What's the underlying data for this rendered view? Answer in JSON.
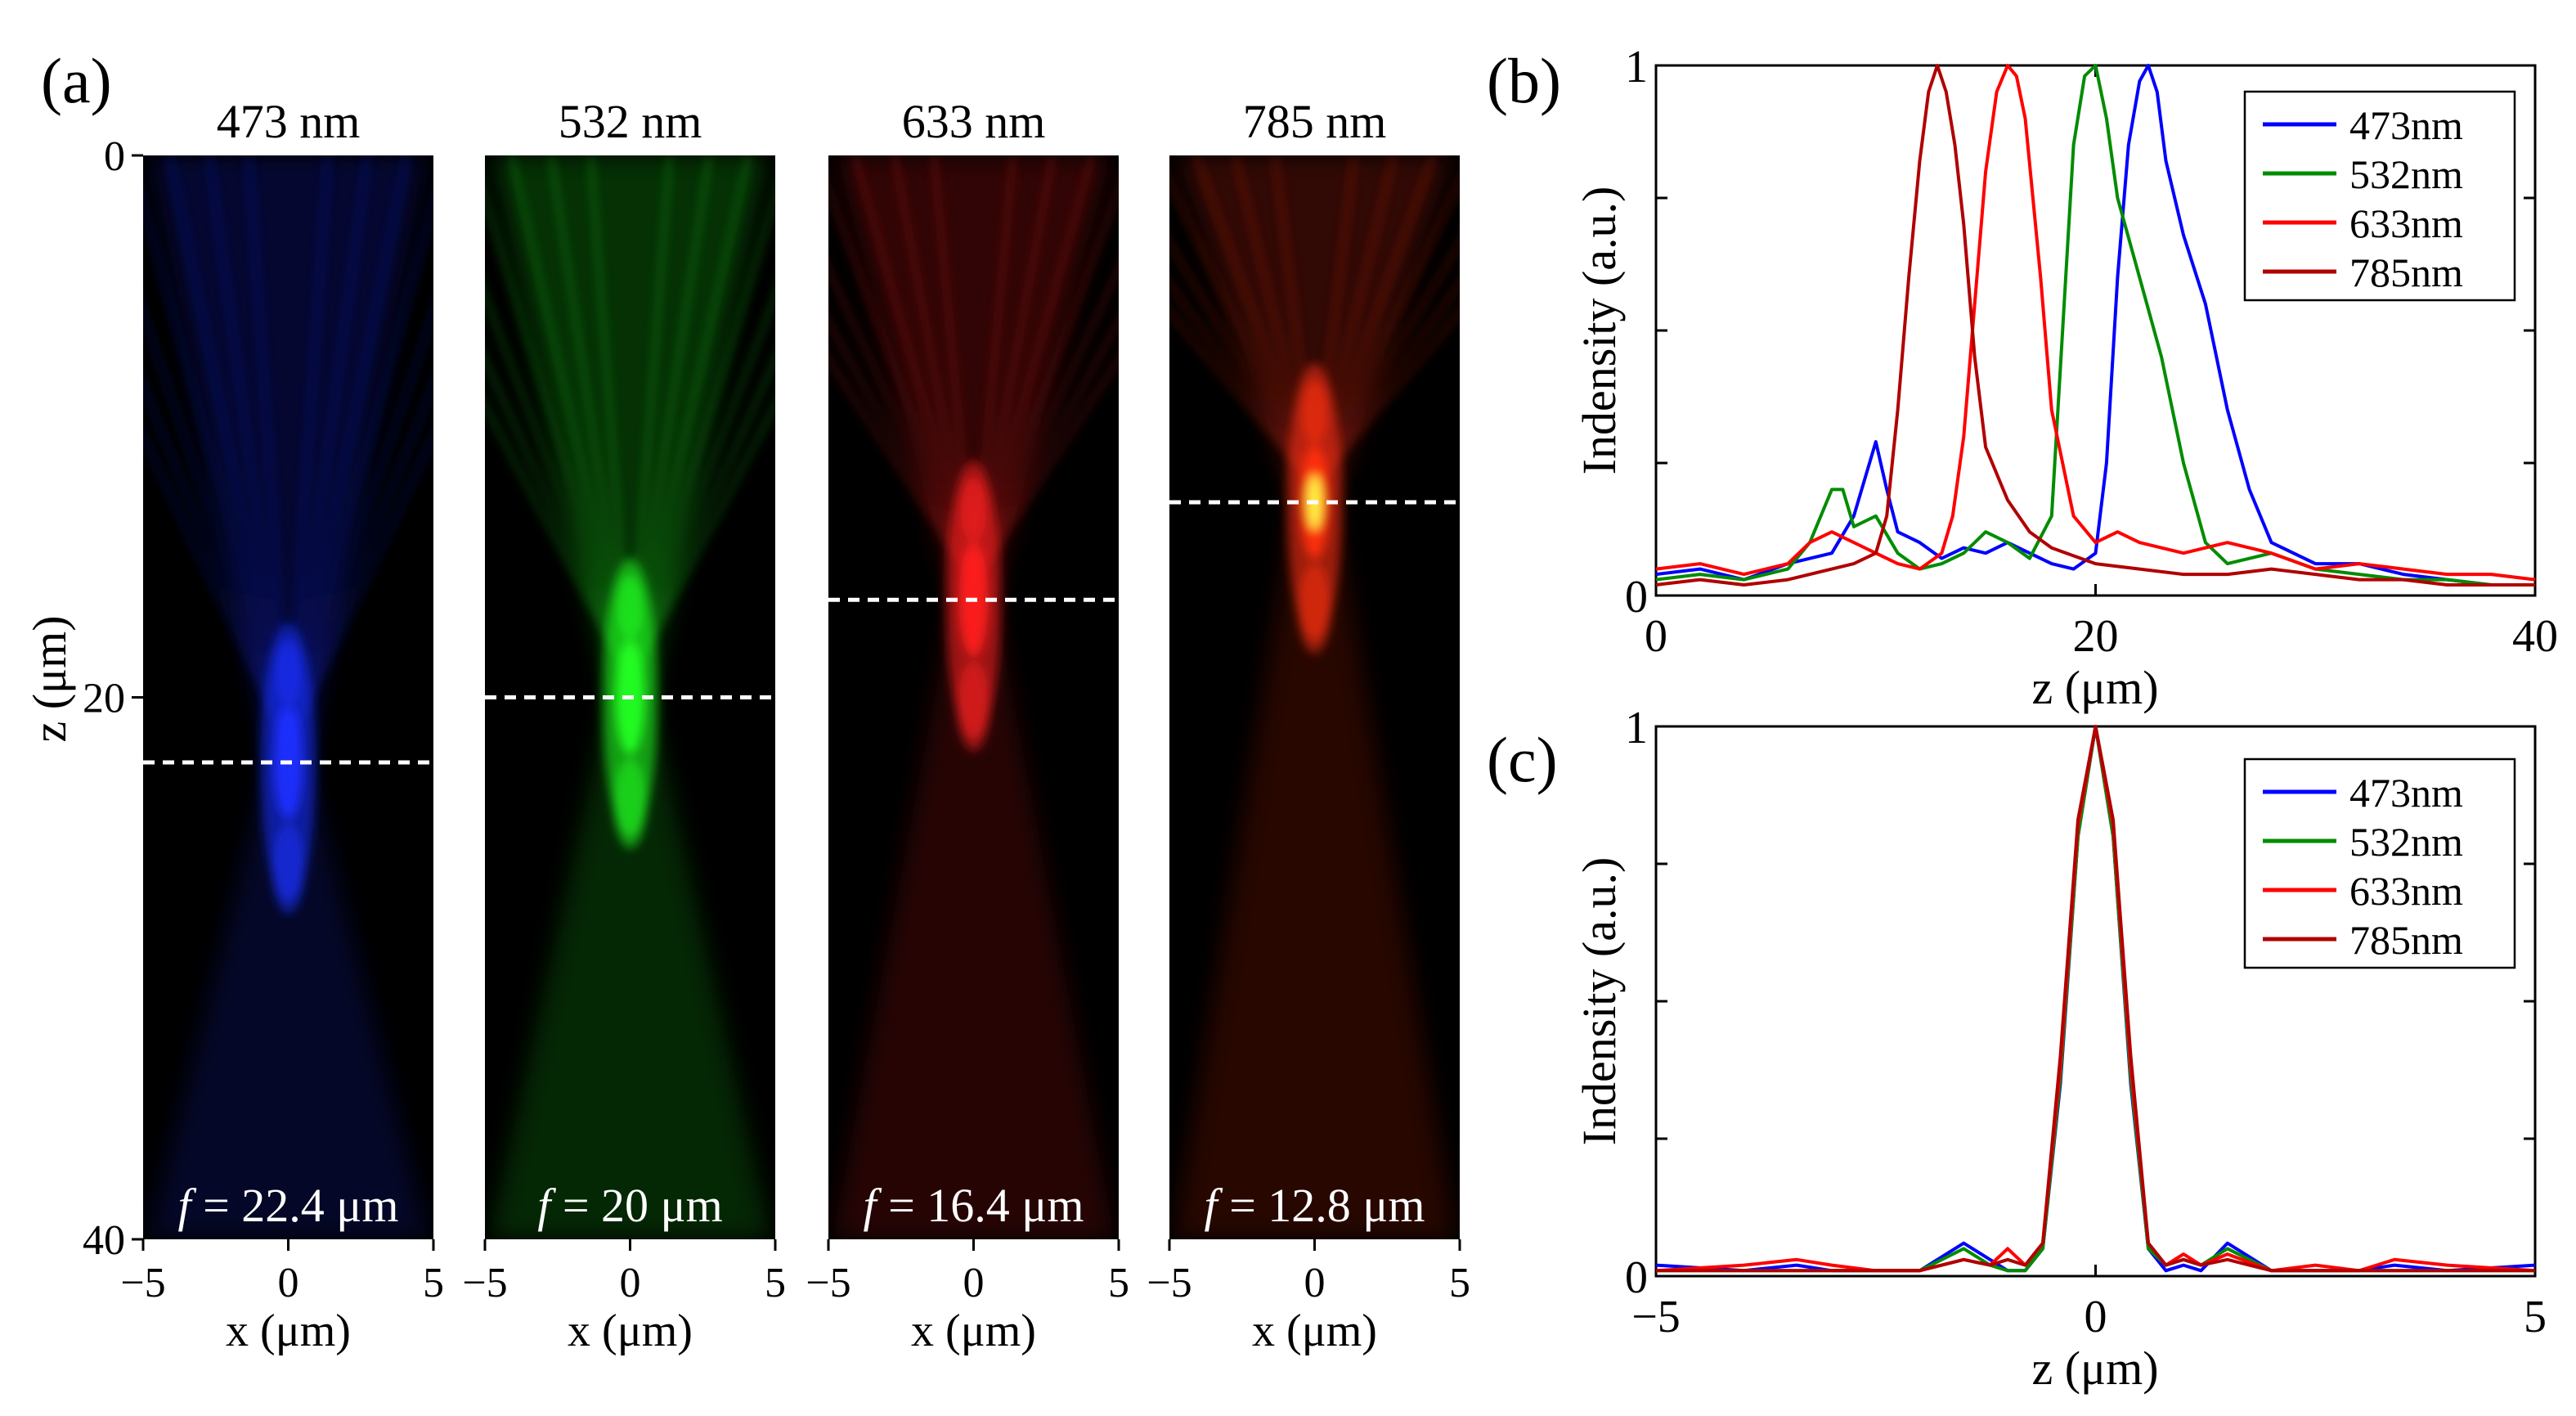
{
  "panel_labels": {
    "a": "(a)",
    "b": "(b)",
    "c": "(c)"
  },
  "chart_data": [
    {
      "type": "heatmap",
      "panel": "(a)",
      "xlabel": "x (μm)",
      "ylabel": "z (μm)",
      "xlim": [
        -5,
        5
      ],
      "ylim": [
        0,
        40
      ],
      "x_ticks": [
        "−5",
        "0",
        "5"
      ],
      "y_ticks": [
        "0",
        "20",
        "40"
      ],
      "maps": [
        {
          "title": "473 nm",
          "annotation_prefix": "f",
          "annotation_value": " = 22.4 μm",
          "focus_z": 22.4,
          "color": "#1a2fff"
        },
        {
          "title": "532 nm",
          "annotation_prefix": "f",
          "annotation_value": " = 20 μm",
          "focus_z": 20,
          "color": "#22ff22"
        },
        {
          "title": "633 nm",
          "annotation_prefix": "f",
          "annotation_value": " = 16.4 μm",
          "focus_z": 16.4,
          "color": "#ff2020"
        },
        {
          "title": "785 nm",
          "annotation_prefix": "f",
          "annotation_value": " = 12.8 μm",
          "focus_z": 12.8,
          "color": "#ff3010"
        }
      ]
    },
    {
      "type": "line",
      "panel": "(b)",
      "xlabel": "z (μm)",
      "ylabel": "Indensity (a.u.)",
      "xlim": [
        0,
        40
      ],
      "ylim": [
        0,
        1
      ],
      "x_ticks": [
        "0",
        "20",
        "40"
      ],
      "y_ticks": [
        "0",
        "1"
      ],
      "legend": "top-right",
      "series": [
        {
          "name": "473nm",
          "color": "#0000ff",
          "x": [
            0,
            2,
            4,
            6,
            8,
            9,
            10,
            10.5,
            11,
            12,
            13,
            14,
            15,
            16,
            17,
            18,
            19,
            20,
            20.5,
            21,
            21.5,
            22,
            22.4,
            22.8,
            23.2,
            24,
            25,
            26,
            27,
            28,
            30,
            32,
            34,
            36,
            38,
            40
          ],
          "y": [
            0.04,
            0.05,
            0.03,
            0.06,
            0.08,
            0.15,
            0.29,
            0.2,
            0.12,
            0.1,
            0.07,
            0.09,
            0.08,
            0.1,
            0.08,
            0.06,
            0.05,
            0.08,
            0.25,
            0.6,
            0.85,
            0.97,
            1,
            0.95,
            0.82,
            0.68,
            0.55,
            0.35,
            0.2,
            0.1,
            0.06,
            0.06,
            0.04,
            0.03,
            0.02,
            0.02
          ]
        },
        {
          "name": "532nm",
          "color": "#008c00",
          "x": [
            0,
            2,
            4,
            6,
            7,
            8,
            8.5,
            9,
            10,
            11,
            12,
            13,
            14,
            15,
            16,
            17,
            18,
            18.5,
            19,
            19.5,
            20,
            20.5,
            21,
            22,
            23,
            24,
            25,
            26,
            28,
            30,
            32,
            34,
            36,
            38,
            40
          ],
          "y": [
            0.03,
            0.04,
            0.03,
            0.05,
            0.1,
            0.2,
            0.2,
            0.13,
            0.15,
            0.08,
            0.05,
            0.06,
            0.08,
            0.12,
            0.1,
            0.07,
            0.15,
            0.5,
            0.85,
            0.98,
            1,
            0.9,
            0.75,
            0.6,
            0.45,
            0.25,
            0.1,
            0.06,
            0.08,
            0.05,
            0.04,
            0.03,
            0.03,
            0.02,
            0.02
          ]
        },
        {
          "name": "633nm",
          "color": "#ff0000",
          "x": [
            0,
            2,
            4,
            6,
            7,
            8,
            9,
            10,
            11,
            12,
            13,
            13.5,
            14,
            14.5,
            15,
            15.5,
            16,
            16.4,
            16.8,
            17.5,
            18,
            19,
            20,
            21,
            22,
            24,
            26,
            28,
            30,
            32,
            34,
            36,
            38,
            40
          ],
          "y": [
            0.05,
            0.06,
            0.04,
            0.06,
            0.1,
            0.12,
            0.1,
            0.08,
            0.06,
            0.05,
            0.08,
            0.15,
            0.3,
            0.55,
            0.8,
            0.95,
            1,
            0.98,
            0.9,
            0.6,
            0.35,
            0.15,
            0.1,
            0.12,
            0.1,
            0.08,
            0.1,
            0.08,
            0.05,
            0.06,
            0.05,
            0.04,
            0.04,
            0.03
          ]
        },
        {
          "name": "785nm",
          "color": "#b00000",
          "x": [
            0,
            2,
            4,
            6,
            8,
            9,
            10,
            10.5,
            11,
            11.5,
            12,
            12.4,
            12.8,
            13.2,
            13.6,
            14,
            14.5,
            15,
            16,
            17,
            18,
            20,
            22,
            24,
            26,
            28,
            30,
            32,
            34,
            36,
            38,
            40
          ],
          "y": [
            0.02,
            0.03,
            0.02,
            0.03,
            0.05,
            0.06,
            0.08,
            0.15,
            0.35,
            0.6,
            0.82,
            0.95,
            1,
            0.95,
            0.85,
            0.7,
            0.45,
            0.28,
            0.18,
            0.12,
            0.09,
            0.06,
            0.05,
            0.04,
            0.04,
            0.05,
            0.04,
            0.03,
            0.03,
            0.02,
            0.02,
            0.02
          ]
        }
      ]
    },
    {
      "type": "line",
      "panel": "(c)",
      "xlabel": "z (μm)",
      "ylabel": "Indensity (a.u.)",
      "xlim": [
        -5,
        5
      ],
      "ylim": [
        0,
        1
      ],
      "x_ticks": [
        "−5",
        "0",
        "5"
      ],
      "y_ticks": [
        "0",
        "1"
      ],
      "legend": "top-right",
      "series": [
        {
          "name": "473nm",
          "color": "#0000ff",
          "x": [
            -5,
            -4,
            -3.4,
            -3,
            -2.5,
            -2,
            -1.5,
            -1.2,
            -1,
            -0.8,
            -0.6,
            -0.4,
            -0.2,
            0,
            0.2,
            0.4,
            0.6,
            0.8,
            1,
            1.2,
            1.5,
            2,
            2.5,
            3,
            3.4,
            4,
            5
          ],
          "y": [
            0.02,
            0.01,
            0.02,
            0.01,
            0.01,
            0.01,
            0.06,
            0.03,
            0.01,
            0.01,
            0.05,
            0.35,
            0.8,
            1,
            0.8,
            0.35,
            0.05,
            0.01,
            0.02,
            0.01,
            0.06,
            0.01,
            0.01,
            0.01,
            0.02,
            0.01,
            0.02
          ]
        },
        {
          "name": "532nm",
          "color": "#008c00",
          "x": [
            -5,
            -4,
            -3.4,
            -3,
            -2.5,
            -2,
            -1.5,
            -1.2,
            -1,
            -0.8,
            -0.6,
            -0.4,
            -0.2,
            0,
            0.2,
            0.4,
            0.6,
            0.8,
            1,
            1.2,
            1.5,
            2,
            2.5,
            3,
            3.4,
            4,
            5
          ],
          "y": [
            0.01,
            0.01,
            0.01,
            0.01,
            0.01,
            0.01,
            0.05,
            0.02,
            0.01,
            0.01,
            0.05,
            0.36,
            0.8,
            1,
            0.8,
            0.36,
            0.05,
            0.02,
            0.03,
            0.02,
            0.05,
            0.01,
            0.01,
            0.01,
            0.01,
            0.01,
            0.01
          ]
        },
        {
          "name": "633nm",
          "color": "#ff0000",
          "x": [
            -5,
            -4,
            -3.4,
            -3,
            -2.5,
            -2,
            -1.5,
            -1.2,
            -1,
            -0.8,
            -0.6,
            -0.4,
            -0.2,
            0,
            0.2,
            0.4,
            0.6,
            0.8,
            1,
            1.2,
            1.5,
            2,
            2.5,
            3,
            3.4,
            4,
            5
          ],
          "y": [
            0.01,
            0.02,
            0.03,
            0.02,
            0.01,
            0.01,
            0.03,
            0.02,
            0.05,
            0.02,
            0.06,
            0.38,
            0.82,
            1,
            0.82,
            0.38,
            0.06,
            0.02,
            0.04,
            0.02,
            0.04,
            0.01,
            0.02,
            0.01,
            0.03,
            0.02,
            0.01
          ]
        },
        {
          "name": "785nm",
          "color": "#b00000",
          "x": [
            -5,
            -4,
            -3.4,
            -3,
            -2.5,
            -2,
            -1.5,
            -1.2,
            -1,
            -0.8,
            -0.6,
            -0.4,
            -0.2,
            0,
            0.2,
            0.4,
            0.6,
            0.8,
            1,
            1.2,
            1.5,
            2,
            2.5,
            3,
            3.4,
            4,
            5
          ],
          "y": [
            0.01,
            0.01,
            0.01,
            0.01,
            0.01,
            0.01,
            0.03,
            0.02,
            0.03,
            0.02,
            0.06,
            0.4,
            0.83,
            1,
            0.83,
            0.4,
            0.06,
            0.02,
            0.03,
            0.02,
            0.03,
            0.01,
            0.01,
            0.01,
            0.01,
            0.01,
            0.01
          ]
        }
      ]
    }
  ]
}
